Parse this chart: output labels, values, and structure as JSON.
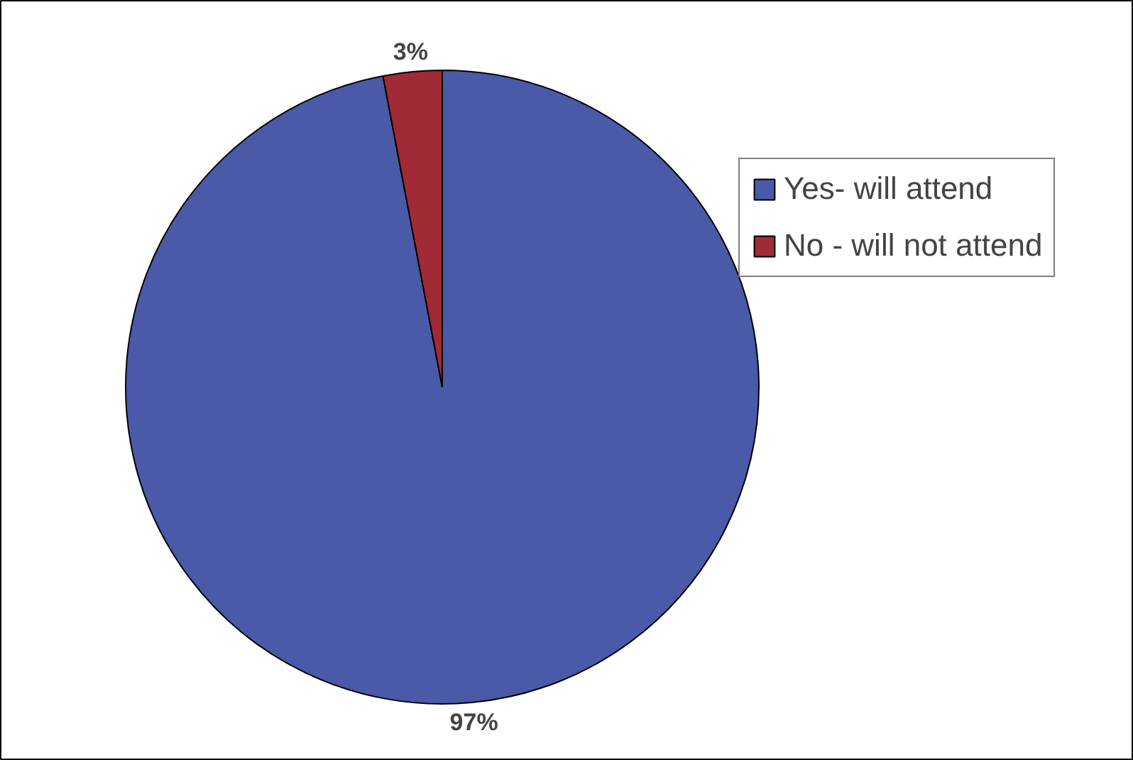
{
  "chart_data": {
    "type": "pie",
    "categories": [
      "Yes- will attend",
      "No - will not attend"
    ],
    "values": [
      97,
      3
    ],
    "colors": [
      "#4a5aa8",
      "#a02a35"
    ],
    "value_labels": [
      "97%",
      "3%"
    ],
    "legend": "top right"
  }
}
